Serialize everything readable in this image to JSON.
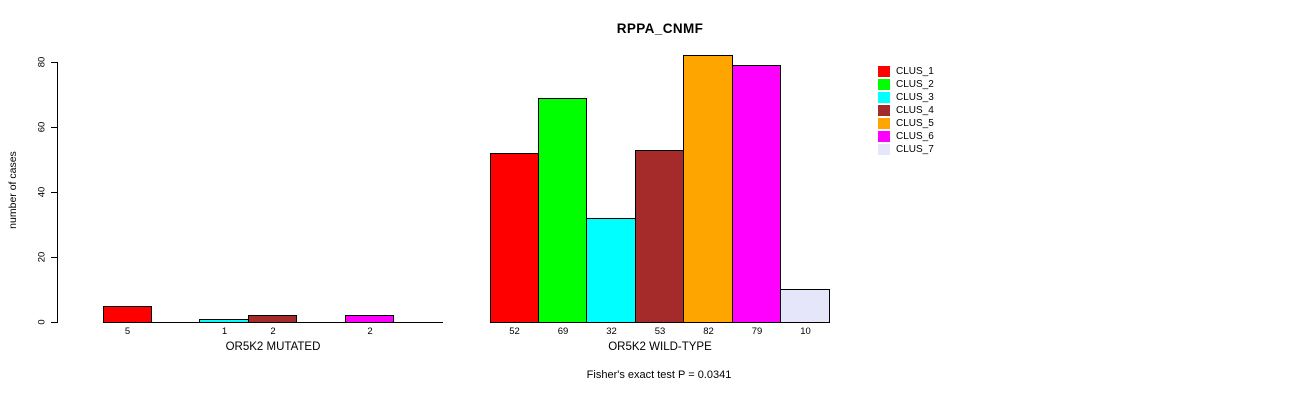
{
  "chart_data": {
    "type": "bar",
    "title": "RPPA_CNMF",
    "ylabel": "number of cases",
    "ylim": [
      0,
      80
    ],
    "yticks": [
      0,
      20,
      40,
      60,
      80
    ],
    "grid": false,
    "legend_position": "right",
    "categories": [
      "OR5K2 MUTATED",
      "OR5K2 WILD-TYPE"
    ],
    "series": [
      {
        "name": "CLUS_1",
        "color": "#ff0000",
        "values": [
          5,
          52
        ]
      },
      {
        "name": "CLUS_2",
        "color": "#00ff00",
        "values": [
          0,
          69
        ]
      },
      {
        "name": "CLUS_3",
        "color": "#00ffff",
        "values": [
          1,
          32
        ]
      },
      {
        "name": "CLUS_4",
        "color": "#a52a2a",
        "values": [
          2,
          53
        ]
      },
      {
        "name": "CLUS_5",
        "color": "#ffa500",
        "values": [
          0,
          82
        ]
      },
      {
        "name": "CLUS_6",
        "color": "#ff00ff",
        "values": [
          2,
          79
        ]
      },
      {
        "name": "CLUS_7",
        "color": "#e6e6fa",
        "values": [
          0,
          10
        ]
      }
    ],
    "bar_label_rule": "value shown under each bar with count > 0",
    "annotation": "Fisher's exact test P = 0.0341"
  }
}
